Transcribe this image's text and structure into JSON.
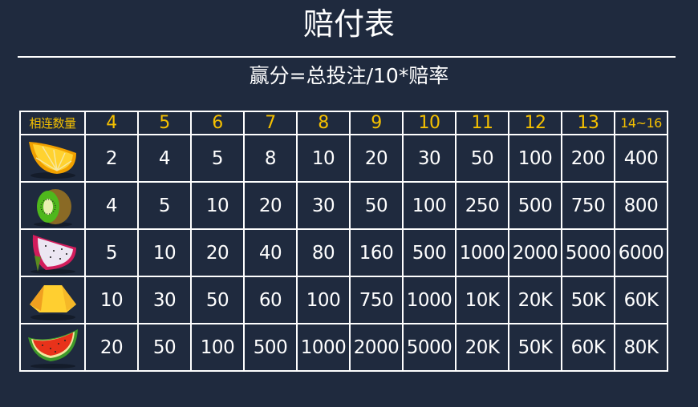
{
  "title": "赔付表",
  "subtitle": "赢分=总投注/10*赔率",
  "table": {
    "corner_label": "相连数量",
    "columns": [
      "4",
      "5",
      "6",
      "7",
      "8",
      "9",
      "10",
      "11",
      "12",
      "13",
      "14~16"
    ],
    "rows": [
      {
        "symbol": "orange-icon",
        "values": [
          "2",
          "4",
          "5",
          "8",
          "10",
          "20",
          "30",
          "50",
          "100",
          "200",
          "400"
        ]
      },
      {
        "symbol": "kiwi-icon",
        "values": [
          "4",
          "5",
          "10",
          "20",
          "30",
          "50",
          "100",
          "250",
          "500",
          "750",
          "800"
        ]
      },
      {
        "symbol": "dragon-fruit-icon",
        "values": [
          "5",
          "10",
          "20",
          "40",
          "80",
          "160",
          "500",
          "1000",
          "2000",
          "5000",
          "6000"
        ]
      },
      {
        "symbol": "pineapple-icon",
        "values": [
          "10",
          "30",
          "50",
          "60",
          "100",
          "750",
          "1000",
          "10K",
          "20K",
          "50K",
          "60K"
        ]
      },
      {
        "symbol": "watermelon-icon",
        "values": [
          "20",
          "50",
          "100",
          "500",
          "1000",
          "2000",
          "5000",
          "20K",
          "50K",
          "60K",
          "80K"
        ]
      }
    ]
  },
  "colors": {
    "background": "#1f2a3e",
    "header_text": "#f5c000",
    "text": "#ffffff"
  }
}
